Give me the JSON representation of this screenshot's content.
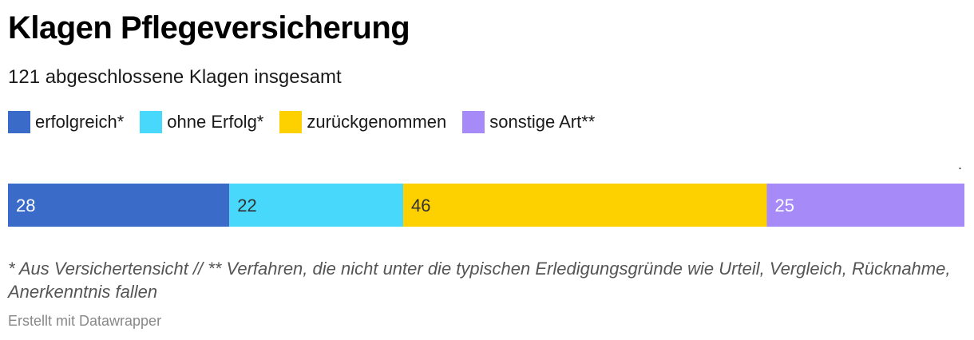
{
  "header": {
    "title": "Klagen Pflegeversicherung",
    "subtitle": "121 abgeschlossene Klagen insgesamt"
  },
  "legend": {
    "items": [
      {
        "label": "erfolgreich*",
        "color": "#3a6bc9"
      },
      {
        "label": "ohne Erfolg*",
        "color": "#48d8fb"
      },
      {
        "label": "zurückgenommen",
        "color": "#fdd000"
      },
      {
        "label": "sonstige Art**",
        "color": "#a58af8"
      }
    ]
  },
  "marker": ".",
  "chart_data": {
    "type": "bar",
    "orientation": "horizontal-stacked",
    "categories": [
      ""
    ],
    "series": [
      {
        "name": "erfolgreich*",
        "values": [
          28
        ],
        "color": "#3a6bc9",
        "label_color": "#ffffff"
      },
      {
        "name": "ohne Erfolg*",
        "values": [
          22
        ],
        "color": "#48d8fb",
        "label_color": "#333333"
      },
      {
        "name": "zurückgenommen",
        "values": [
          46
        ],
        "color": "#fdd000",
        "label_color": "#333333"
      },
      {
        "name": "sonstige Art**",
        "values": [
          25
        ],
        "color": "#a58af8",
        "label_color": "#ffffff"
      }
    ],
    "total": 121,
    "title": "Klagen Pflegeversicherung",
    "subtitle": "121 abgeschlossene Klagen insgesamt",
    "legend_position": "top-left",
    "grid": false
  },
  "footer": {
    "note": "* Aus Versichertensicht // ** Verfahren, die nicht unter die typischen Erledigungsgründe wie Urteil, Vergleich, Rücknahme, Anerkenntnis fallen",
    "credit": "Erstellt mit Datawrapper"
  }
}
